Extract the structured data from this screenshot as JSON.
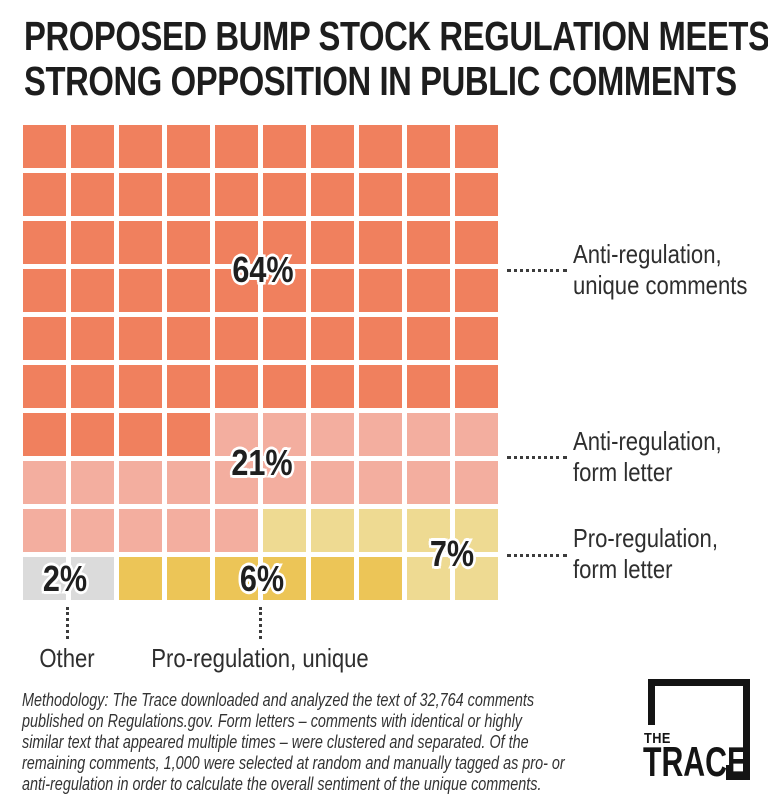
{
  "title": {
    "line1": "PROPOSED BUMP STOCK REGULATION MEETS",
    "line2": "STRONG OPPOSITION IN PUBLIC COMMENTS"
  },
  "chart_data": {
    "type": "waffle",
    "title": "Proposed bump stock regulation meets strong opposition in public comments",
    "grid_size": {
      "rows": 10,
      "cols": 10
    },
    "total_units": 100,
    "unit": "percent of comments",
    "categories": [
      {
        "id": "anti_unique",
        "label": "Anti-regulation, unique comments",
        "value": 64,
        "pct_label": "64%",
        "color": "#F0805E"
      },
      {
        "id": "anti_form",
        "label": "Anti-regulation, form letter",
        "value": 21,
        "pct_label": "21%",
        "color": "#F3AE9F"
      },
      {
        "id": "pro_form",
        "label": "Pro-regulation, form letter",
        "value": 7,
        "pct_label": "7%",
        "color": "#EEDA92"
      },
      {
        "id": "pro_unique",
        "label": "Pro-regulation, unique",
        "value": 6,
        "pct_label": "6%",
        "color": "#ECC557"
      },
      {
        "id": "other",
        "label": "Other",
        "value": 2,
        "pct_label": "2%",
        "color": "#DBDBDB"
      }
    ],
    "cell_key": {
      "A": "anti_unique",
      "F": "anti_form",
      "P": "pro_form",
      "U": "pro_unique",
      "O": "other"
    },
    "grid_rows": [
      "AAAAAAAAAA",
      "AAAAAAAAAA",
      "AAAAAAAAAA",
      "AAAAAAAAAA",
      "AAAAAAAAAA",
      "AAAAAAAAAA",
      "AAAAFFFFFF",
      "FFFFFFFFFF",
      "FFFFFPPPPP",
      "OOUUUUUUPP"
    ],
    "legend_position": "right-and-bottom-callouts",
    "grid": false
  },
  "annotations": {
    "right_labels": [
      {
        "line1": "Anti-regulation,",
        "line2": "unique comments"
      },
      {
        "line1": "Anti-regulation,",
        "line2": "form letter"
      },
      {
        "line1": "Pro-regulation,",
        "line2": "form letter"
      }
    ],
    "bottom_labels": [
      {
        "text": "Other"
      },
      {
        "text": "Pro-regulation, unique"
      }
    ]
  },
  "methodology": "Methodology: The Trace downloaded and analyzed the text of 32,764 comments published on Regulations.gov. Form letters – comments with identical or highly similar text that appeared multiple times – were clustered and separated. Of the remaining comments, 1,000 were selected at random and manually tagged as pro- or anti-regulation in order to calculate the overall sentiment of the unique comments.",
  "logo": {
    "the": "THE",
    "trace": "TRACE"
  }
}
